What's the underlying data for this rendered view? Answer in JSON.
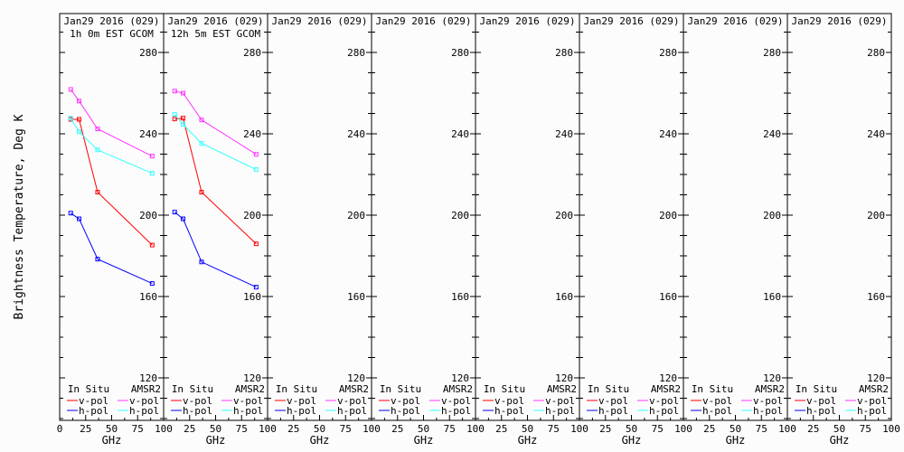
{
  "chart_data": {
    "type": "line",
    "ylabel": "Brightness Temperature, Deg K",
    "xlabel": "GHz",
    "ylim": [
      100,
      300
    ],
    "xlim": [
      0,
      100
    ],
    "x_ticks": [
      0,
      25,
      50,
      75,
      100
    ],
    "y_ticks": [
      120,
      160,
      200,
      240,
      280
    ],
    "grid": false,
    "colors": {
      "insitu_v": "#ff0000",
      "insitu_h": "#0000ff",
      "amsr2_v": "#ff33ff",
      "amsr2_h": "#33ffff"
    },
    "legend": {
      "placement": "bottom",
      "groups": [
        "In Situ",
        "AMSR2"
      ],
      "entries": [
        {
          "group": "In Situ",
          "label": "v-pol",
          "series": "insitu_v"
        },
        {
          "group": "AMSR2",
          "label": "v-pol",
          "series": "amsr2_v"
        },
        {
          "group": "In Situ",
          "label": "h-pol",
          "series": "insitu_h"
        },
        {
          "group": "AMSR2",
          "label": "h-pol",
          "series": "amsr2_h"
        }
      ]
    },
    "x": [
      10.65,
      18.7,
      36.5,
      89
    ],
    "panels": [
      {
        "title": "Jan29 2016 (029)",
        "subtitle": "1h 0m EST GCOM",
        "series": {
          "amsr2_v": [
            261.8,
            256.1,
            242.4,
            229.0
          ],
          "amsr2_h": [
            247.6,
            241.0,
            232.1,
            220.6
          ],
          "insitu_v": [
            247.1,
            247.1,
            211.3,
            185.3
          ],
          "insitu_h": [
            201.0,
            198.2,
            178.4,
            166.4
          ]
        }
      },
      {
        "title": "Jan29 2016 (029)",
        "subtitle": "12h 5m EST GCOM",
        "series": {
          "amsr2_v": [
            261.0,
            260.0,
            246.8,
            229.9
          ],
          "amsr2_h": [
            249.5,
            244.6,
            235.3,
            222.4
          ],
          "insitu_v": [
            247.3,
            247.7,
            211.3,
            185.9
          ],
          "insitu_h": [
            201.5,
            198.2,
            177.0,
            164.6
          ]
        }
      },
      {
        "title": "Jan29 2016 (029)",
        "subtitle": "",
        "series": {}
      },
      {
        "title": "Jan29 2016 (029)",
        "subtitle": "",
        "series": {}
      },
      {
        "title": "Jan29 2016 (029)",
        "subtitle": "",
        "series": {}
      },
      {
        "title": "Jan29 2016 (029)",
        "subtitle": "",
        "series": {}
      },
      {
        "title": "Jan29 2016 (029)",
        "subtitle": "",
        "series": {}
      },
      {
        "title": "Jan29 2016 (029)",
        "subtitle": "",
        "series": {}
      }
    ]
  }
}
